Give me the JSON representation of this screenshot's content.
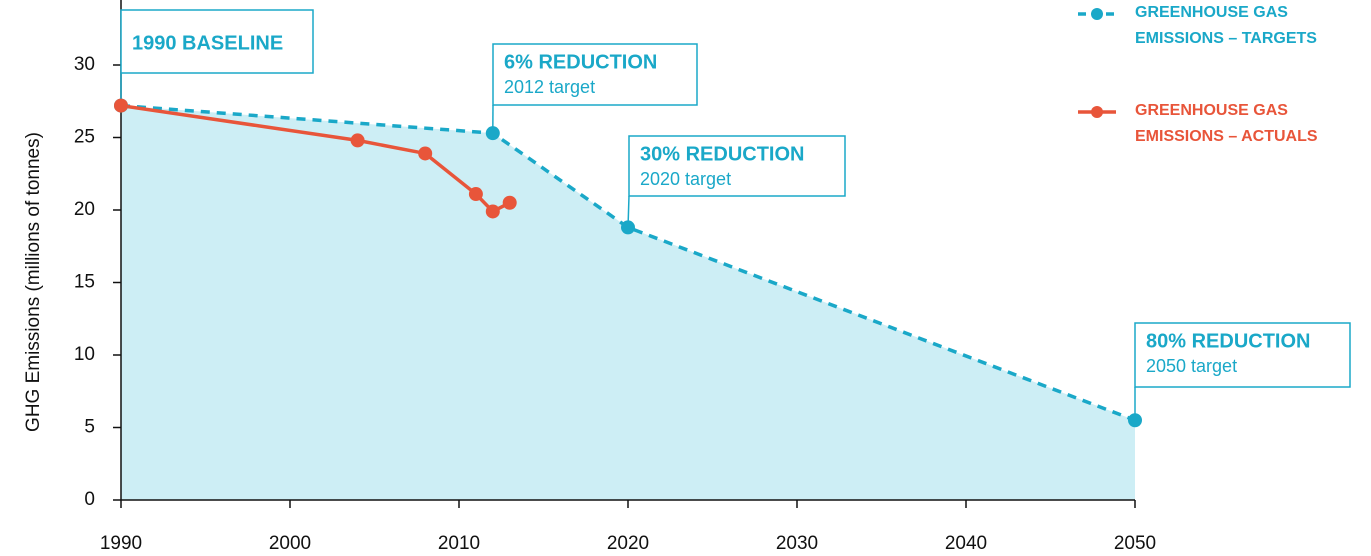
{
  "chart_data": {
    "type": "line",
    "y_label": "GHG Emissions (millions of tonnes)",
    "xlim": [
      1990,
      2050
    ],
    "xticks": [
      1990,
      2000,
      2010,
      2020,
      2030,
      2040,
      2050
    ],
    "ylim": [
      0,
      33
    ],
    "yticks": [
      0,
      5,
      10,
      15,
      20,
      25,
      30
    ],
    "legend": "top-right",
    "area_color": "#cdeef5",
    "series": [
      {
        "name": "GREENHOUSE GAS EMISSIONS – TARGETS",
        "color": "#1aa8c8",
        "style": "dashed",
        "x": [
          1990,
          2012,
          2020,
          2050
        ],
        "values": [
          27.2,
          25.3,
          18.8,
          5.5
        ]
      },
      {
        "name": "GREENHOUSE GAS EMISSIONS – ACTUALS",
        "color": "#e8553a",
        "style": "solid",
        "x": [
          1990,
          2004,
          2008,
          2011,
          2012,
          2013
        ],
        "values": [
          27.2,
          24.8,
          23.9,
          21.1,
          19.9,
          20.5
        ]
      }
    ],
    "annotations": [
      {
        "title": "1990 BASELINE"
      },
      {
        "title": "6% REDUCTION",
        "subtitle": "2012 target"
      },
      {
        "title": "30% REDUCTION",
        "subtitle": "2020 target"
      },
      {
        "title": "80% REDUCTION",
        "subtitle": "2050 target"
      }
    ]
  }
}
